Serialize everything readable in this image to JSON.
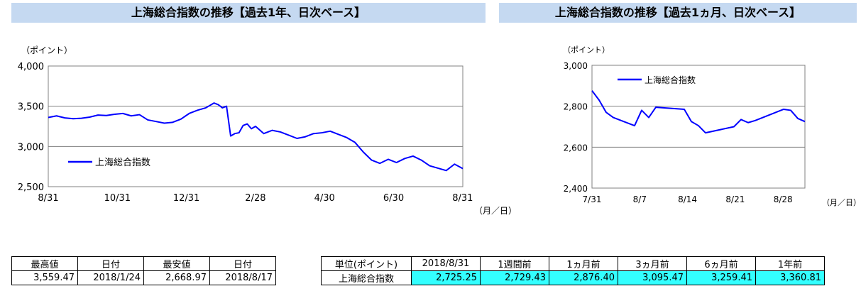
{
  "titles": {
    "chart1": "上海総合指数の推移【過去1年、日次ベース】",
    "chart2": "上海総合指数の推移【過去1ヵ月、日次ベース】"
  },
  "chart_data": [
    {
      "type": "line",
      "title": "上海総合指数の推移【過去1年、日次ベース】",
      "ylabel": "（ポイント）",
      "xlabel": "（月／日）",
      "ylim": [
        2500,
        4000
      ],
      "yticks": [
        "4,000",
        "3,500",
        "3,000",
        "2,500"
      ],
      "ytick_values": [
        4000,
        3500,
        3000,
        2500
      ],
      "xticks": [
        "8/31",
        "10/31",
        "12/31",
        "2/28",
        "4/30",
        "6/30",
        "8/31"
      ],
      "grid": true,
      "legend": "left-bottom",
      "series": [
        {
          "name": "上海総合指数",
          "color": "#0000ff",
          "x": [
            0,
            0.02,
            0.04,
            0.06,
            0.08,
            0.1,
            0.12,
            0.14,
            0.16,
            0.18,
            0.2,
            0.22,
            0.24,
            0.26,
            0.28,
            0.3,
            0.32,
            0.34,
            0.36,
            0.38,
            0.4,
            0.41,
            0.42,
            0.43,
            0.44,
            0.45,
            0.46,
            0.47,
            0.48,
            0.49,
            0.5,
            0.52,
            0.54,
            0.56,
            0.58,
            0.6,
            0.62,
            0.64,
            0.66,
            0.68,
            0.7,
            0.72,
            0.74,
            0.76,
            0.78,
            0.8,
            0.82,
            0.84,
            0.86,
            0.88,
            0.9,
            0.92,
            0.94,
            0.96,
            0.98,
            1.0
          ],
          "values": [
            3360,
            3380,
            3355,
            3345,
            3350,
            3365,
            3390,
            3385,
            3400,
            3410,
            3380,
            3395,
            3330,
            3310,
            3290,
            3300,
            3340,
            3410,
            3450,
            3480,
            3540,
            3520,
            3480,
            3500,
            3130,
            3160,
            3170,
            3260,
            3280,
            3220,
            3250,
            3160,
            3200,
            3180,
            3140,
            3100,
            3120,
            3160,
            3170,
            3190,
            3150,
            3110,
            3050,
            2930,
            2830,
            2790,
            2840,
            2800,
            2850,
            2880,
            2830,
            2760,
            2730,
            2700,
            2780,
            2725
          ]
        }
      ]
    },
    {
      "type": "line",
      "title": "上海総合指数の推移【過去1ヵ月、日次ベース】",
      "ylabel": "（ポイント）",
      "xlabel": "（月／日）",
      "ylim": [
        2400,
        3000
      ],
      "yticks": [
        "3,000",
        "2,800",
        "2,600",
        "2,400"
      ],
      "ytick_values": [
        3000,
        2800,
        2600,
        2400
      ],
      "xticks": [
        "7/31",
        "8/7",
        "8/14",
        "8/21",
        "8/28"
      ],
      "grid": true,
      "legend": "top-left",
      "series": [
        {
          "name": "上海総合指数",
          "color": "#0000ff",
          "x": [
            0,
            1,
            2,
            3,
            6,
            7,
            8,
            9,
            13,
            14,
            15,
            16,
            20,
            21,
            22,
            23,
            27,
            28,
            29,
            30
          ],
          "values": [
            2876,
            2830,
            2770,
            2745,
            2705,
            2780,
            2745,
            2795,
            2785,
            2725,
            2705,
            2670,
            2700,
            2735,
            2720,
            2730,
            2785,
            2780,
            2740,
            2725
          ]
        }
      ]
    }
  ],
  "table1": {
    "headers": [
      "最高値",
      "日付",
      "最安値",
      "日付"
    ],
    "values": [
      "3,559.47",
      "2018/1/24",
      "2,668.97",
      "2018/8/17"
    ]
  },
  "table2": {
    "headers": [
      "単位(ポイント)",
      "2018/8/31",
      "1週間前",
      "1ヵ月前",
      "3ヵ月前",
      "6ヵ月前",
      "1年前"
    ],
    "row_label": "上海総合指数",
    "values": [
      "2,725.25",
      "2,729.43",
      "2,876.40",
      "3,095.47",
      "3,259.41",
      "3,360.81"
    ],
    "highlight_color": "#33ffff"
  }
}
